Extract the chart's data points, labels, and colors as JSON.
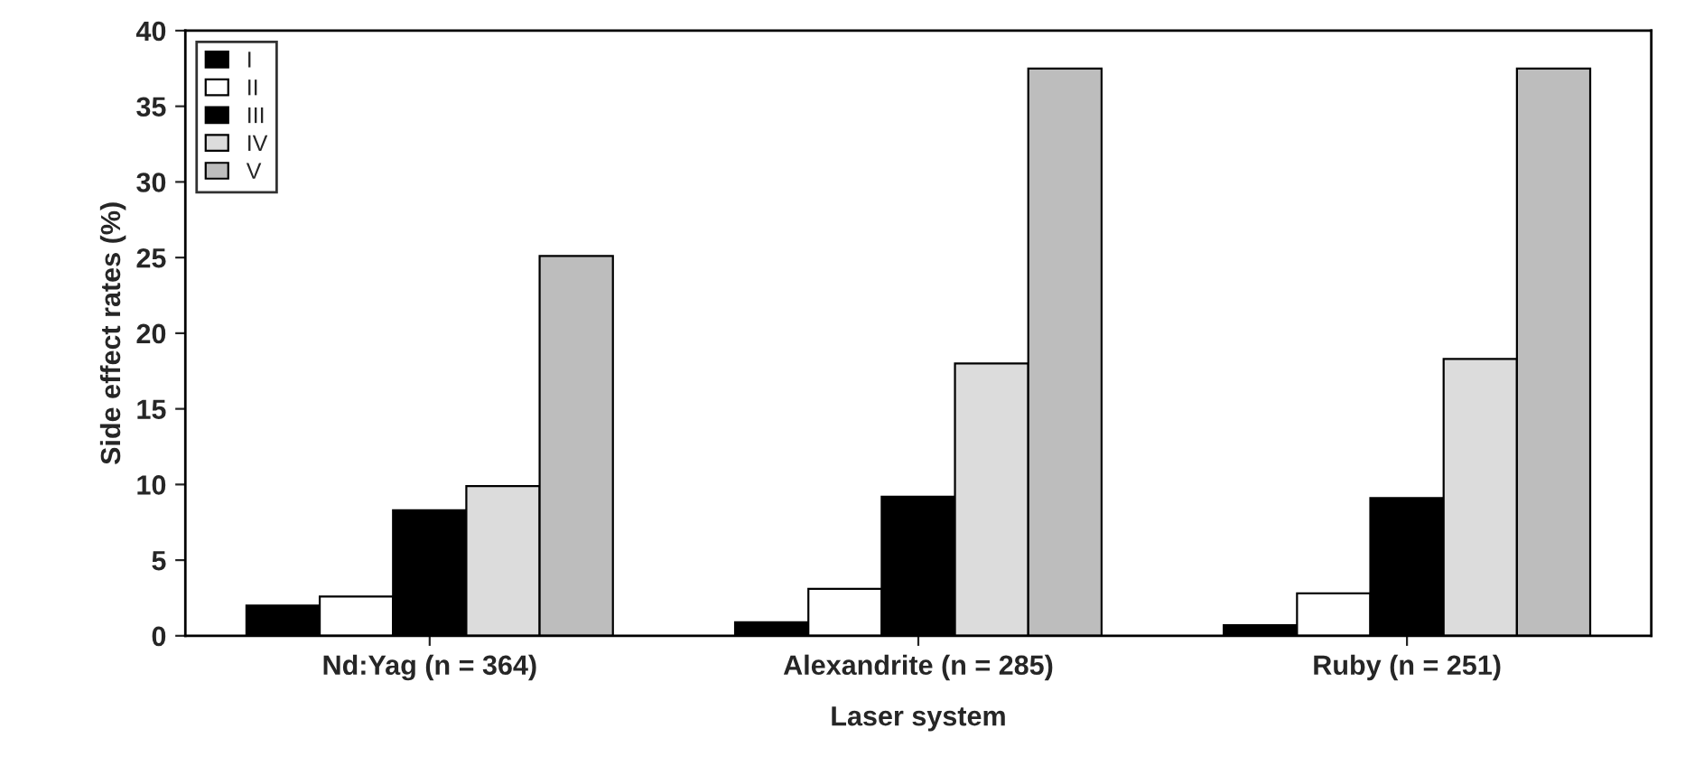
{
  "chart_data": {
    "type": "bar",
    "xlabel": "Laser system",
    "ylabel": "Side effect rates (%)",
    "categories": [
      "Nd:Yag (n = 364)",
      "Alexandrite (n = 285)",
      "Ruby (n = 251)"
    ],
    "series": [
      {
        "name": "I",
        "color": "#000000",
        "values": [
          2.0,
          0.9,
          0.7
        ]
      },
      {
        "name": "II",
        "color": "#ffffff",
        "values": [
          2.6,
          3.1,
          2.8
        ]
      },
      {
        "name": "III",
        "color": "#000000",
        "values": [
          8.3,
          9.2,
          9.1
        ]
      },
      {
        "name": "IV",
        "color": "#dcdcdc",
        "values": [
          9.9,
          18.0,
          18.3
        ]
      },
      {
        "name": "V",
        "color": "#bdbdbd",
        "values": [
          25.1,
          37.5,
          37.5
        ]
      }
    ],
    "ylim": [
      0,
      40
    ],
    "yticks": [
      0,
      5,
      10,
      15,
      20,
      25,
      30,
      35,
      40
    ],
    "grid": false,
    "legend": "top left"
  }
}
